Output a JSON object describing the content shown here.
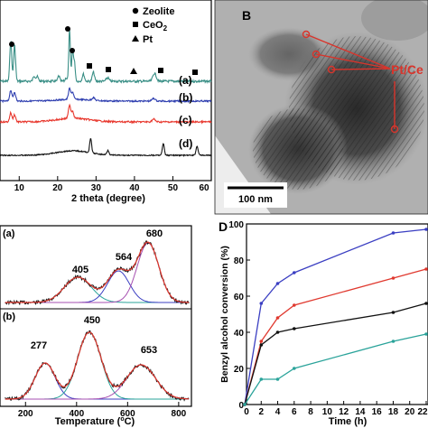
{
  "panelA": {
    "legend": [
      {
        "symbol": "circle",
        "label": "Zeolite"
      },
      {
        "symbol": "square",
        "label": "CeO",
        "sub": "2"
      },
      {
        "symbol": "triangle",
        "label": "Pt"
      }
    ],
    "curve_labels": [
      "(a)",
      "(b)",
      "(c)",
      "(d)"
    ],
    "xlabel": "2 theta (degree)",
    "xticks": [
      "10",
      "20",
      "30",
      "40",
      "50",
      "60"
    ]
  },
  "panelB": {
    "letter": "B",
    "annotation": "Pt/Ce",
    "scalebar": "100 nm"
  },
  "panelC": {
    "xlabel": "Temperature (",
    "xlabel_unit": "C)",
    "xticks": [
      "200",
      "400",
      "600",
      "800"
    ],
    "top_label": "(a)",
    "bottom_label": "(b)",
    "peaks_a": [
      "405",
      "564",
      "680"
    ],
    "peaks_b": [
      "277",
      "450",
      "653"
    ]
  },
  "panelD": {
    "letter": "D",
    "ylabel": "Benzyl alcohol conversion (%)",
    "xlabel": "Time (h)",
    "yticks": [
      "0",
      "20",
      "40",
      "60",
      "80",
      "100"
    ],
    "xticks": [
      "0",
      "2",
      "4",
      "6",
      "8",
      "10",
      "12",
      "14",
      "16",
      "18",
      "20",
      "22"
    ]
  },
  "chart_data": [
    {
      "type": "line",
      "panel": "A",
      "xlabel": "2 theta (degree)",
      "ylabel": "",
      "xlim": [
        5,
        60
      ],
      "series": [
        {
          "name": "(a)",
          "color": "#3a8f86"
        },
        {
          "name": "(b)",
          "color": "#2f3fb0"
        },
        {
          "name": "(c)",
          "color": "#e8382e"
        },
        {
          "name": "(d)",
          "color": "#111111"
        }
      ]
    },
    {
      "type": "line",
      "panel": "C",
      "xlabel": "Temperature (°C)",
      "xlim": [
        100,
        850
      ],
      "series": [
        {
          "name": "(a)",
          "peaks": [
            405,
            564,
            680
          ]
        },
        {
          "name": "(b)",
          "peaks": [
            277,
            450,
            653
          ]
        }
      ]
    },
    {
      "type": "line",
      "panel": "D",
      "xlabel": "Time (h)",
      "ylabel": "Benzyl alcohol conversion (%)",
      "xlim": [
        0,
        22
      ],
      "ylim": [
        0,
        100
      ],
      "series": [
        {
          "color": "#3b3fc2",
          "x": [
            0,
            2,
            4,
            6,
            18,
            22
          ],
          "y": [
            0,
            56,
            67,
            73,
            95,
            97
          ]
        },
        {
          "color": "#e0392f",
          "x": [
            0,
            2,
            4,
            6,
            18,
            22
          ],
          "y": [
            0,
            35,
            48,
            55,
            70,
            75
          ]
        },
        {
          "color": "#111111",
          "x": [
            0,
            2,
            4,
            6,
            18,
            22
          ],
          "y": [
            0,
            33,
            40,
            42,
            51,
            56
          ]
        },
        {
          "color": "#2aa39a",
          "x": [
            0,
            2,
            4,
            6,
            18,
            22
          ],
          "y": [
            0,
            14,
            14,
            20,
            35,
            39
          ]
        }
      ]
    }
  ]
}
